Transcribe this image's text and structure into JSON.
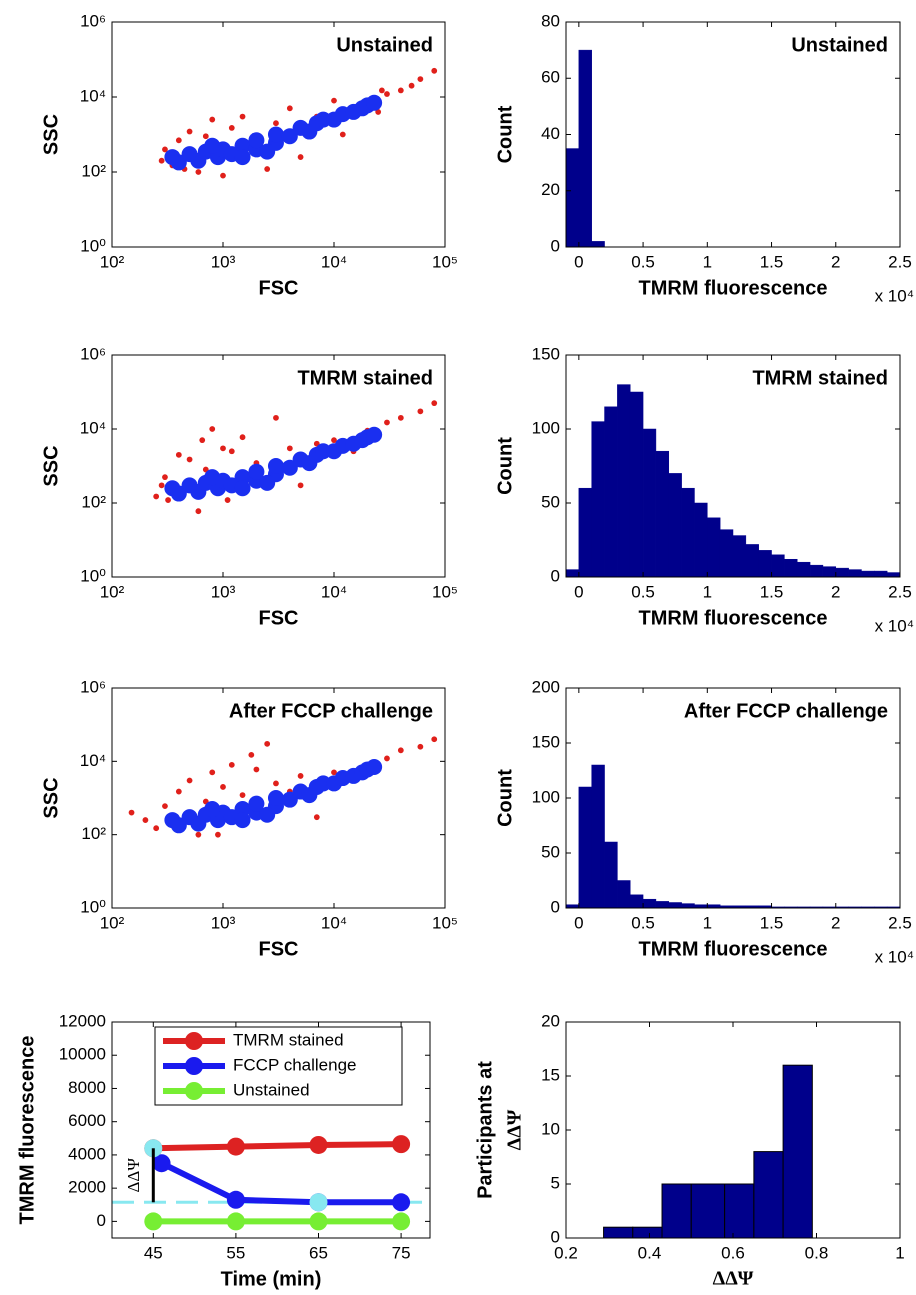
{
  "chart_data": [
    {
      "type": "scatter",
      "title": "Unstained",
      "xlabel": "FSC",
      "ylabel": "SSC",
      "log_x": true,
      "log_y": true,
      "xlim": [
        100,
        100000
      ],
      "ylim": [
        1,
        1000000
      ],
      "xticks": [
        {
          "value": 100,
          "label": "10²"
        },
        {
          "value": 1000,
          "label": "10³"
        },
        {
          "value": 10000,
          "label": "10⁴"
        },
        {
          "value": 100000,
          "label": "10⁵"
        }
      ],
      "yticks": [
        {
          "value": 1,
          "label": "10⁰"
        },
        {
          "value": 100,
          "label": "10²"
        },
        {
          "value": 10000,
          "label": "10⁴"
        },
        {
          "value": 1000000,
          "label": "10⁶"
        }
      ],
      "series": [
        {
          "color": "#e0201b",
          "x": [
            280,
            300,
            350,
            400,
            500,
            600,
            800,
            1000,
            1200,
            1500,
            2000,
            2500,
            3000,
            4000,
            5000,
            7000,
            10000,
            12000,
            15000,
            20000,
            25000,
            30000,
            40000,
            50000,
            60000,
            80000,
            27000,
            450,
            700
          ],
          "values": [
            200,
            400,
            150,
            700,
            1200,
            100,
            2500,
            80,
            1500,
            3000,
            900,
            120,
            2000,
            5000,
            250,
            3000,
            8000,
            1000,
            3000,
            8000,
            4000,
            12000,
            15000,
            20000,
            30000,
            50000,
            15000,
            120,
            900
          ]
        },
        {
          "color": "#1a2ff0",
          "x": [
            350,
            400,
            500,
            600,
            700,
            900,
            1000,
            1200,
            1500,
            2000,
            2000,
            3000,
            3000,
            4000,
            5000,
            6000,
            7000,
            8000,
            10000,
            12000,
            15000,
            18000,
            20000,
            23000,
            800,
            1500,
            2500
          ],
          "values": [
            250,
            180,
            300,
            200,
            350,
            250,
            400,
            300,
            500,
            400,
            700,
            600,
            1000,
            900,
            1500,
            1200,
            2000,
            2500,
            2500,
            3500,
            4000,
            5000,
            6000,
            7000,
            500,
            250,
            350
          ]
        }
      ]
    },
    {
      "type": "histogram",
      "title": "Unstained",
      "xlabel": "TMRM fluorescence",
      "x_multiplier": "x 10⁴",
      "ylabel": "Count",
      "color": "#00008b",
      "bins": [
        -0.1,
        0,
        0.1,
        0.2,
        0.3,
        0.4,
        0.5,
        0.6,
        0.7,
        0.8,
        0.9,
        1,
        1.1,
        1.2,
        1.3,
        1.4,
        1.5,
        1.6,
        1.7,
        1.8,
        1.9,
        2,
        2.1,
        2.2,
        2.3,
        2.4,
        2.5
      ],
      "values": [
        35,
        70,
        2,
        0,
        0,
        0,
        0,
        0,
        0,
        0,
        0,
        0,
        0,
        0,
        0,
        0,
        0,
        0,
        0,
        0,
        0,
        0,
        0,
        0,
        0,
        0
      ],
      "xlim": [
        -0.1,
        2.5
      ],
      "xticks": [
        0,
        0.5,
        1,
        1.5,
        2,
        2.5
      ],
      "ylim": [
        0,
        80
      ],
      "yticks": [
        0,
        20,
        40,
        60,
        80
      ]
    },
    {
      "type": "scatter",
      "title": "TMRM stained",
      "xlabel": "FSC",
      "ylabel": "SSC",
      "log_x": true,
      "log_y": true,
      "xlim": [
        100,
        100000
      ],
      "ylim": [
        1,
        1000000
      ],
      "xticks": [
        {
          "value": 100,
          "label": "10²"
        },
        {
          "value": 1000,
          "label": "10³"
        },
        {
          "value": 10000,
          "label": "10⁴"
        },
        {
          "value": 100000,
          "label": "10⁵"
        }
      ],
      "yticks": [
        {
          "value": 1,
          "label": "10⁰"
        },
        {
          "value": 100,
          "label": "10²"
        },
        {
          "value": 10000,
          "label": "10⁴"
        },
        {
          "value": 1000000,
          "label": "10⁶"
        }
      ],
      "series": [
        {
          "color": "#e0201b",
          "x": [
            250,
            280,
            320,
            400,
            500,
            600,
            700,
            800,
            1000,
            1200,
            1500,
            2000,
            3000,
            4000,
            5000,
            7000,
            10000,
            15000,
            20000,
            30000,
            40000,
            60000,
            80000,
            650,
            1100,
            300
          ],
          "values": [
            150,
            300,
            120,
            2000,
            1500,
            60,
            800,
            10000,
            3000,
            2500,
            6000,
            1200,
            20000,
            3000,
            300,
            4000,
            5000,
            2500,
            9000,
            15000,
            20000,
            30000,
            50000,
            5000,
            120,
            500
          ]
        },
        {
          "color": "#1a2ff0",
          "x": [
            350,
            400,
            500,
            600,
            700,
            900,
            1000,
            1200,
            1500,
            2000,
            2000,
            3000,
            3000,
            4000,
            5000,
            6000,
            7000,
            8000,
            10000,
            12000,
            15000,
            18000,
            20000,
            23000,
            800,
            1500,
            2500
          ],
          "values": [
            250,
            180,
            300,
            200,
            350,
            250,
            400,
            300,
            500,
            400,
            700,
            600,
            1000,
            900,
            1500,
            1200,
            2000,
            2500,
            2500,
            3500,
            4000,
            5000,
            6000,
            7000,
            500,
            250,
            350
          ]
        }
      ]
    },
    {
      "type": "histogram",
      "title": "TMRM stained",
      "xlabel": "TMRM fluorescence",
      "x_multiplier": "x 10⁴",
      "ylabel": "Count",
      "color": "#00008b",
      "bins": [
        -0.1,
        0,
        0.1,
        0.2,
        0.3,
        0.4,
        0.5,
        0.6,
        0.7,
        0.8,
        0.9,
        1,
        1.1,
        1.2,
        1.3,
        1.4,
        1.5,
        1.6,
        1.7,
        1.8,
        1.9,
        2,
        2.1,
        2.2,
        2.3,
        2.4,
        2.5
      ],
      "values": [
        5,
        60,
        105,
        115,
        130,
        125,
        100,
        85,
        70,
        60,
        50,
        40,
        32,
        28,
        22,
        18,
        15,
        12,
        10,
        8,
        7,
        6,
        5,
        4,
        4,
        3
      ],
      "xlim": [
        -0.1,
        2.5
      ],
      "xticks": [
        0,
        0.5,
        1,
        1.5,
        2,
        2.5
      ],
      "ylim": [
        0,
        150
      ],
      "yticks": [
        0,
        50,
        100,
        150
      ]
    },
    {
      "type": "scatter",
      "title": "After FCCP challenge",
      "xlabel": "FSC",
      "ylabel": "SSC",
      "log_x": true,
      "log_y": true,
      "xlim": [
        100,
        100000
      ],
      "ylim": [
        1,
        1000000
      ],
      "xticks": [
        {
          "value": 100,
          "label": "10²"
        },
        {
          "value": 1000,
          "label": "10³"
        },
        {
          "value": 10000,
          "label": "10⁴"
        },
        {
          "value": 100000,
          "label": "10⁵"
        }
      ],
      "yticks": [
        {
          "value": 1,
          "label": "10⁰"
        },
        {
          "value": 100,
          "label": "10²"
        },
        {
          "value": 10000,
          "label": "10⁴"
        },
        {
          "value": 1000000,
          "label": "10⁶"
        }
      ],
      "series": [
        {
          "color": "#e0201b",
          "x": [
            150,
            200,
            250,
            300,
            400,
            500,
            600,
            700,
            800,
            1000,
            1200,
            1500,
            2000,
            2500,
            3000,
            4000,
            5000,
            7000,
            10000,
            15000,
            20000,
            30000,
            40000,
            60000,
            80000,
            900,
            1800
          ],
          "values": [
            400,
            250,
            150,
            600,
            1500,
            3000,
            100,
            800,
            5000,
            2000,
            8000,
            1200,
            6000,
            30000,
            2500,
            1500,
            4000,
            300,
            5000,
            3000,
            8000,
            12000,
            20000,
            25000,
            40000,
            100,
            15000
          ]
        },
        {
          "color": "#1a2ff0",
          "x": [
            350,
            400,
            500,
            600,
            700,
            900,
            1000,
            1200,
            1500,
            2000,
            2000,
            3000,
            3000,
            4000,
            5000,
            6000,
            7000,
            8000,
            10000,
            12000,
            15000,
            18000,
            20000,
            23000,
            800,
            1500,
            2500
          ],
          "values": [
            250,
            180,
            300,
            200,
            350,
            250,
            400,
            300,
            500,
            400,
            700,
            600,
            1000,
            900,
            1500,
            1200,
            2000,
            2500,
            2500,
            3500,
            4000,
            5000,
            6000,
            7000,
            500,
            250,
            350
          ]
        }
      ]
    },
    {
      "type": "histogram",
      "title": "After FCCP challenge",
      "xlabel": "TMRM fluorescence",
      "x_multiplier": "x 10⁴",
      "ylabel": "Count",
      "color": "#00008b",
      "bins": [
        -0.1,
        0,
        0.1,
        0.2,
        0.3,
        0.4,
        0.5,
        0.6,
        0.7,
        0.8,
        0.9,
        1,
        1.1,
        1.2,
        1.3,
        1.4,
        1.5,
        1.6,
        1.7,
        1.8,
        1.9,
        2,
        2.1,
        2.2,
        2.3,
        2.4,
        2.5
      ],
      "values": [
        3,
        110,
        130,
        60,
        25,
        12,
        8,
        6,
        5,
        4,
        3,
        3,
        2,
        2,
        2,
        2,
        1,
        1,
        1,
        1,
        1,
        1,
        1,
        1,
        1,
        1
      ],
      "xlim": [
        -0.1,
        2.5
      ],
      "xticks": [
        0,
        0.5,
        1,
        1.5,
        2,
        2.5
      ],
      "ylim": [
        0,
        200
      ],
      "yticks": [
        0,
        50,
        100,
        150,
        200
      ]
    },
    {
      "type": "line",
      "xlabel": "Time (min)",
      "ylabel": "TMRM fluorescence",
      "legend": "upper right",
      "xlim": [
        40,
        78.5
      ],
      "xticks": [
        45,
        55,
        65,
        75
      ],
      "ylim": [
        -1000,
        12000
      ],
      "yticks": [
        0,
        2000,
        4000,
        6000,
        8000,
        10000,
        12000
      ],
      "series": [
        {
          "name": "TMRM stained",
          "color": "#dd2222",
          "x": [
            45,
            55,
            65,
            75
          ],
          "values": [
            4400,
            4500,
            4600,
            4650
          ]
        },
        {
          "name": "FCCP challenge",
          "color": "#1a1aee",
          "x": [
            46,
            55,
            65,
            75
          ],
          "values": [
            3500,
            1300,
            1150,
            1150
          ]
        },
        {
          "name": "Unstained",
          "color": "#77ee33",
          "x": [
            45,
            55,
            65,
            75
          ],
          "values": [
            0,
            0,
            0,
            0
          ]
        }
      ],
      "reference_line": {
        "value": 1150,
        "color": "#88e8f0"
      },
      "highlight_points": {
        "color": "#88e8f0",
        "x": [
          45,
          65
        ],
        "values": [
          4400,
          1150
        ]
      },
      "annotation": "ΔΔΨ"
    },
    {
      "type": "histogram",
      "xlabel": "ΔΔΨ",
      "ylabel": [
        "Participants at",
        "ΔΔΨ"
      ],
      "color": "#00008b",
      "bins": [
        0.29,
        0.36,
        0.43,
        0.5,
        0.58,
        0.65,
        0.72,
        0.79
      ],
      "values": [
        1,
        1,
        5,
        5,
        5,
        8,
        16
      ],
      "xlim": [
        0.2,
        1
      ],
      "xticks": [
        0.2,
        0.4,
        0.6,
        0.8,
        1
      ],
      "ylim": [
        0,
        20
      ],
      "yticks": [
        0,
        5,
        10,
        15,
        20
      ]
    }
  ]
}
